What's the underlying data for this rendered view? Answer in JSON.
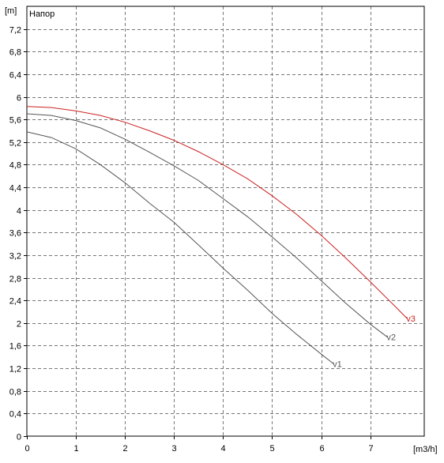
{
  "chart_data": {
    "type": "line",
    "title": "Напор",
    "y_unit": "[m]",
    "x_unit": "[m3/h]",
    "xlim": [
      0,
      8.1
    ],
    "ylim": [
      0,
      7.6
    ],
    "x_ticks": [
      "0",
      "1",
      "2",
      "3",
      "4",
      "5",
      "6",
      "7"
    ],
    "x_tick_values": [
      0,
      1,
      2,
      3,
      4,
      5,
      6,
      7
    ],
    "y_ticks": [
      "0",
      "0,4",
      "0,8",
      "1,2",
      "1,6",
      "2",
      "2,4",
      "2,8",
      "3,2",
      "3,6",
      "4",
      "4,4",
      "4,8",
      "5,2",
      "5,6",
      "6",
      "6,4",
      "6,8",
      "7,2"
    ],
    "y_tick_values": [
      0,
      0.4,
      0.8,
      1.2,
      1.6,
      2,
      2.4,
      2.8,
      3.2,
      3.6,
      4,
      4.4,
      4.8,
      5.2,
      5.6,
      6,
      6.4,
      6.8,
      7.2
    ],
    "grid": true,
    "series": [
      {
        "name": "v1",
        "color": "#555555",
        "x": [
          0,
          0.5,
          1,
          1.5,
          2,
          2.5,
          3,
          3.5,
          4,
          4.5,
          5,
          5.5,
          6,
          6.25
        ],
        "y": [
          5.38,
          5.28,
          5.08,
          4.8,
          4.48,
          4.12,
          3.78,
          3.38,
          2.97,
          2.58,
          2.17,
          1.8,
          1.45,
          1.28
        ]
      },
      {
        "name": "v2",
        "color": "#555555",
        "x": [
          0,
          0.5,
          1,
          1.5,
          2,
          2.5,
          3,
          3.5,
          4,
          4.5,
          5,
          5.5,
          6,
          6.5,
          7,
          7.35
        ],
        "y": [
          5.7,
          5.67,
          5.58,
          5.45,
          5.25,
          5.02,
          4.78,
          4.52,
          4.2,
          3.88,
          3.52,
          3.15,
          2.75,
          2.35,
          1.98,
          1.75
        ]
      },
      {
        "name": "v3",
        "color": "#cc2222",
        "x": [
          0,
          0.5,
          1,
          1.5,
          2,
          2.5,
          3,
          3.5,
          4,
          4.5,
          5,
          5.5,
          6,
          6.5,
          7,
          7.5,
          7.75
        ],
        "y": [
          5.83,
          5.81,
          5.75,
          5.67,
          5.55,
          5.4,
          5.23,
          5.03,
          4.8,
          4.55,
          4.25,
          3.92,
          3.55,
          3.15,
          2.73,
          2.3,
          2.08
        ]
      }
    ]
  }
}
